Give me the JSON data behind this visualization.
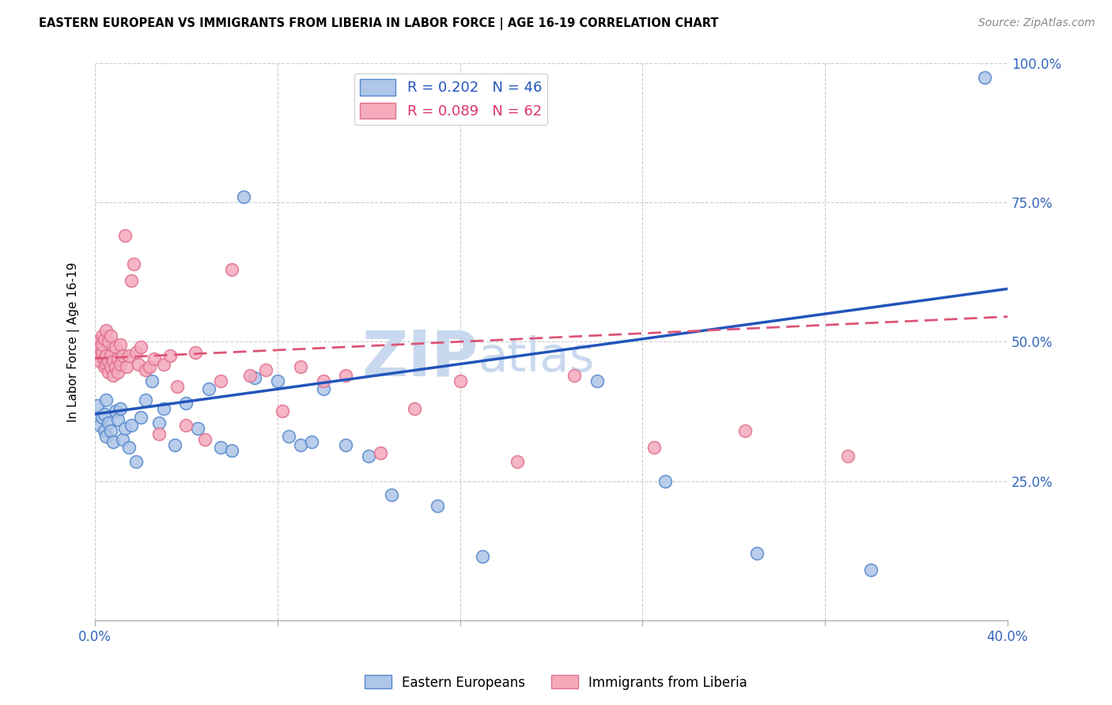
{
  "title": "EASTERN EUROPEAN VS IMMIGRANTS FROM LIBERIA IN LABOR FORCE | AGE 16-19 CORRELATION CHART",
  "source": "Source: ZipAtlas.com",
  "ylabel": "In Labor Force | Age 16-19",
  "xlim": [
    0.0,
    0.4
  ],
  "ylim": [
    0.0,
    1.0
  ],
  "blue_R": 0.202,
  "blue_N": 46,
  "pink_R": 0.089,
  "pink_N": 62,
  "blue_color": "#AEC6E8",
  "pink_color": "#F4AABB",
  "blue_edge_color": "#5588CC",
  "pink_edge_color": "#E07090",
  "blue_line_color": "#2255BB",
  "pink_line_color": "#DD5577",
  "watermark_color": "#C8D8EE",
  "blue_line_y0": 0.37,
  "blue_line_y1": 0.595,
  "pink_line_y0": 0.47,
  "pink_line_y1": 0.545,
  "blue_scatter_x": [
    0.001,
    0.002,
    0.003,
    0.004,
    0.004,
    0.005,
    0.005,
    0.006,
    0.007,
    0.008,
    0.009,
    0.01,
    0.011,
    0.012,
    0.013,
    0.015,
    0.016,
    0.018,
    0.02,
    0.022,
    0.025,
    0.028,
    0.03,
    0.035,
    0.04,
    0.045,
    0.05,
    0.055,
    0.06,
    0.065,
    0.07,
    0.08,
    0.085,
    0.09,
    0.095,
    0.1,
    0.11,
    0.12,
    0.13,
    0.15,
    0.17,
    0.22,
    0.25,
    0.29,
    0.34,
    0.39
  ],
  "blue_scatter_y": [
    0.385,
    0.35,
    0.365,
    0.37,
    0.34,
    0.395,
    0.33,
    0.355,
    0.34,
    0.32,
    0.375,
    0.36,
    0.38,
    0.325,
    0.345,
    0.31,
    0.35,
    0.285,
    0.365,
    0.395,
    0.43,
    0.355,
    0.38,
    0.315,
    0.39,
    0.345,
    0.415,
    0.31,
    0.305,
    0.76,
    0.435,
    0.43,
    0.33,
    0.315,
    0.32,
    0.415,
    0.315,
    0.295,
    0.225,
    0.205,
    0.115,
    0.43,
    0.25,
    0.12,
    0.09,
    0.975
  ],
  "pink_scatter_x": [
    0.001,
    0.001,
    0.002,
    0.002,
    0.003,
    0.003,
    0.003,
    0.004,
    0.004,
    0.004,
    0.005,
    0.005,
    0.005,
    0.006,
    0.006,
    0.006,
    0.007,
    0.007,
    0.007,
    0.008,
    0.008,
    0.009,
    0.009,
    0.01,
    0.01,
    0.011,
    0.011,
    0.012,
    0.013,
    0.014,
    0.015,
    0.016,
    0.017,
    0.018,
    0.019,
    0.02,
    0.022,
    0.024,
    0.026,
    0.028,
    0.03,
    0.033,
    0.036,
    0.04,
    0.044,
    0.048,
    0.055,
    0.06,
    0.068,
    0.075,
    0.082,
    0.09,
    0.1,
    0.11,
    0.125,
    0.14,
    0.16,
    0.185,
    0.21,
    0.245,
    0.285,
    0.33
  ],
  "pink_scatter_y": [
    0.475,
    0.5,
    0.465,
    0.49,
    0.48,
    0.495,
    0.51,
    0.455,
    0.47,
    0.505,
    0.46,
    0.475,
    0.52,
    0.445,
    0.465,
    0.5,
    0.455,
    0.475,
    0.51,
    0.44,
    0.465,
    0.455,
    0.49,
    0.445,
    0.47,
    0.495,
    0.46,
    0.475,
    0.69,
    0.455,
    0.475,
    0.61,
    0.64,
    0.48,
    0.46,
    0.49,
    0.45,
    0.455,
    0.47,
    0.335,
    0.46,
    0.475,
    0.42,
    0.35,
    0.48,
    0.325,
    0.43,
    0.63,
    0.44,
    0.45,
    0.375,
    0.455,
    0.43,
    0.44,
    0.3,
    0.38,
    0.43,
    0.285,
    0.44,
    0.31,
    0.34,
    0.295
  ]
}
